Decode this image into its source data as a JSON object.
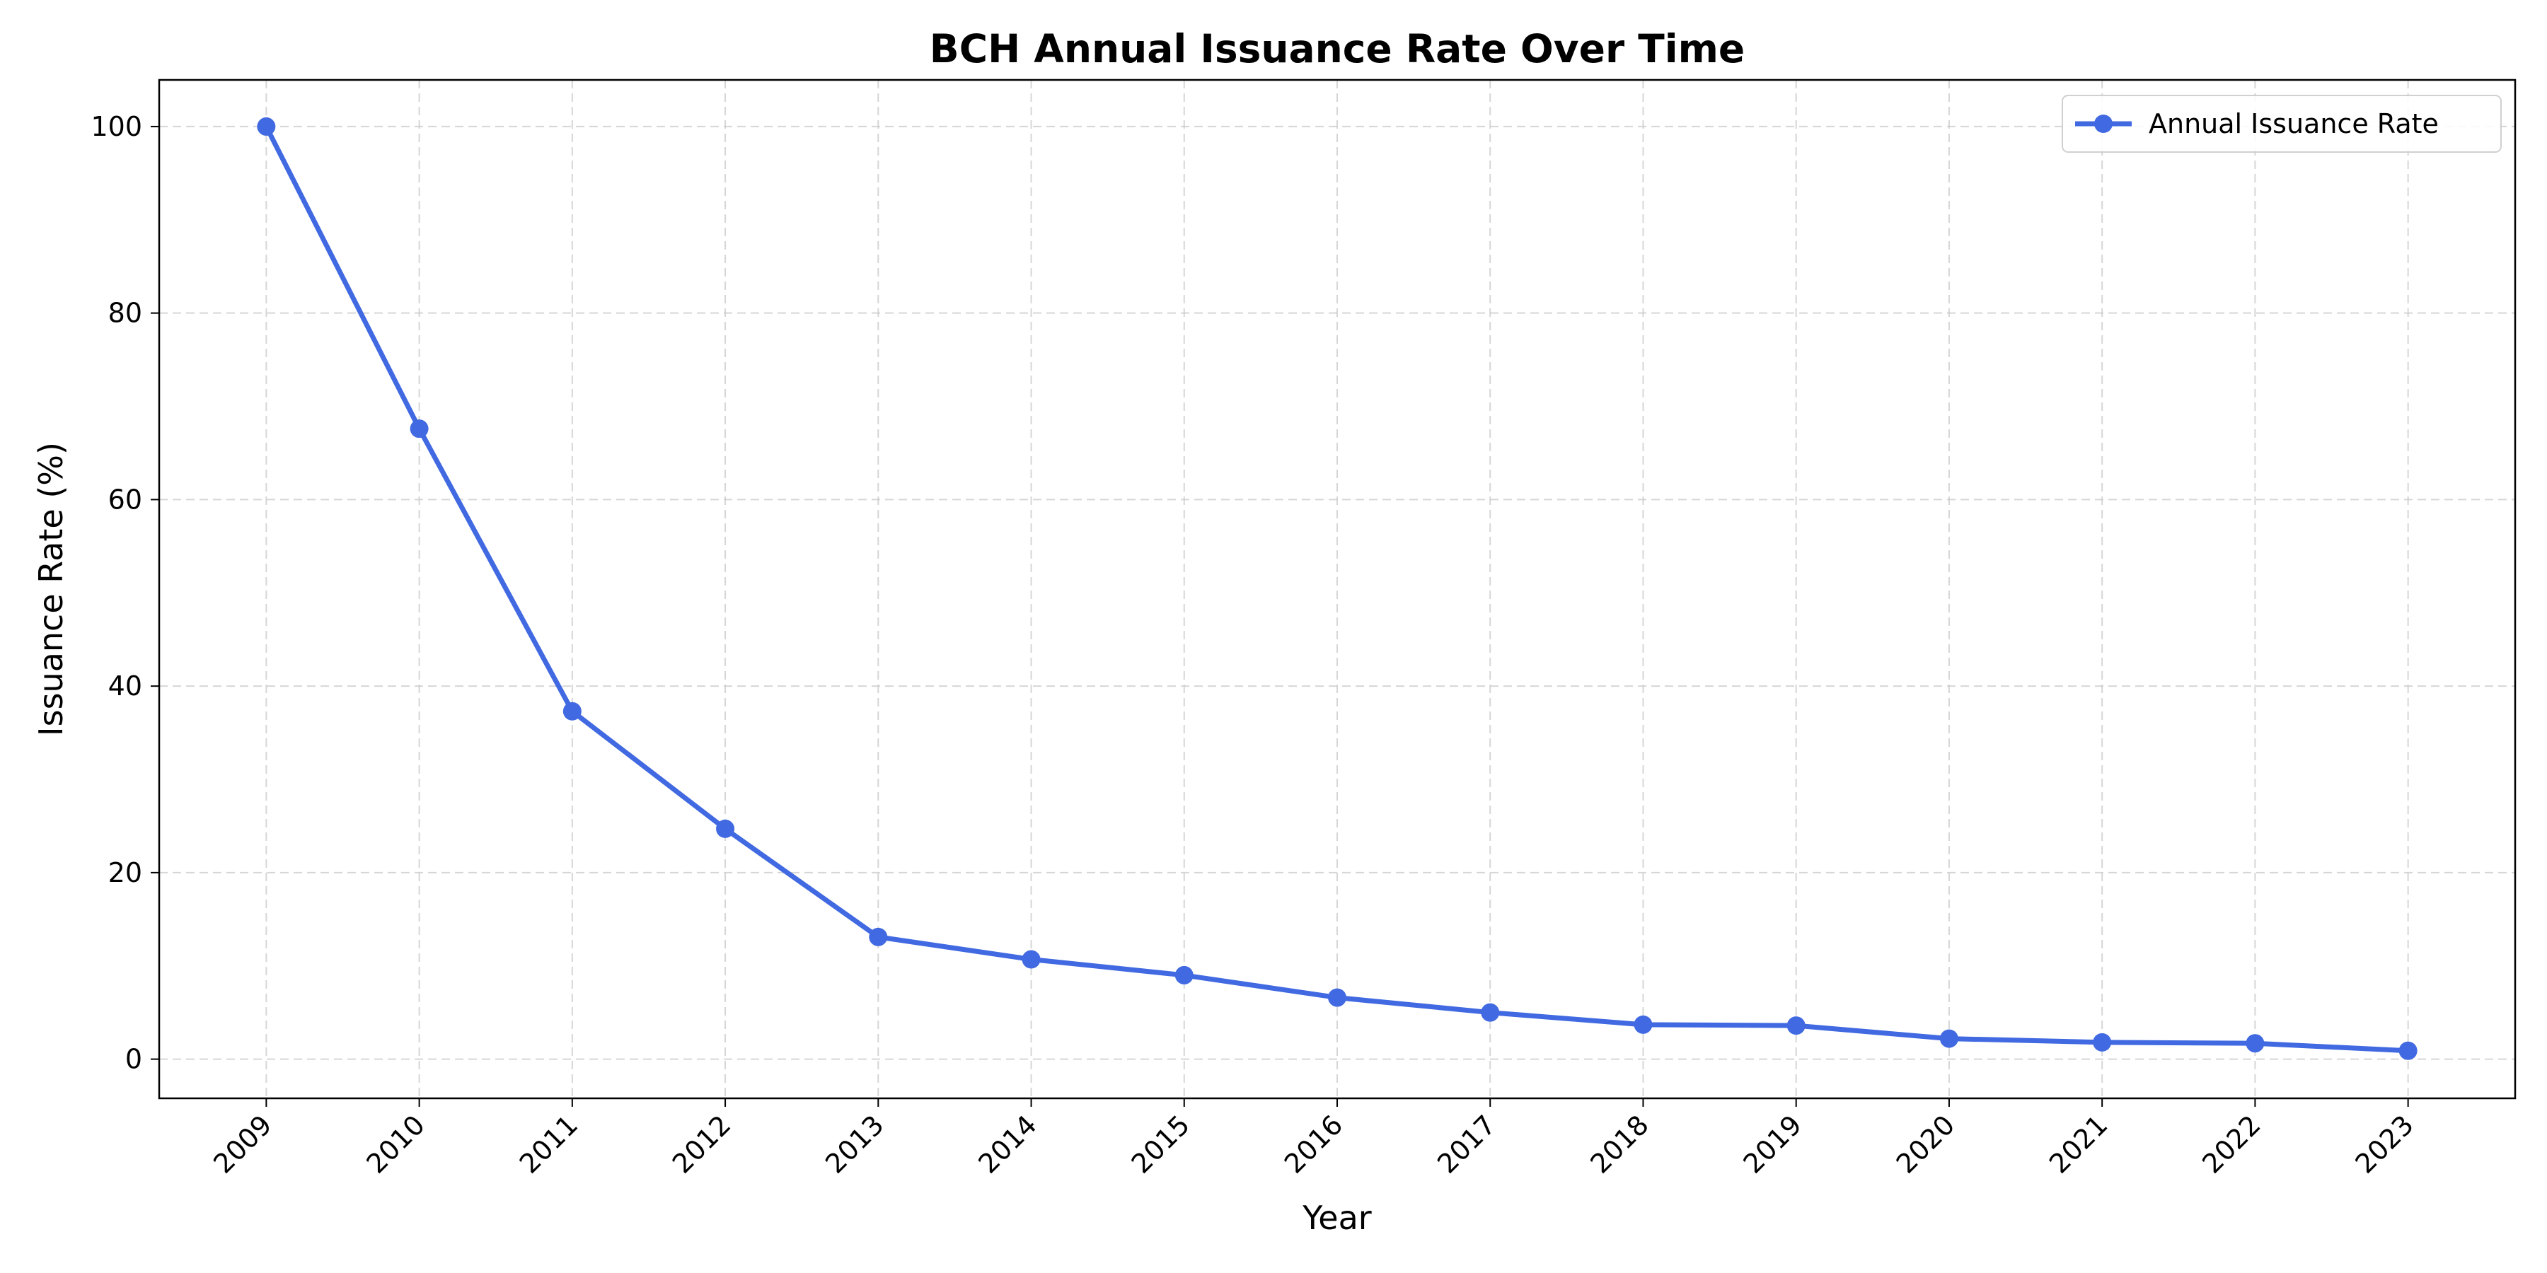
{
  "chart_data": {
    "type": "line",
    "title": "BCH Annual Issuance Rate Over Time",
    "xlabel": "Year",
    "ylabel": "Issuance Rate (%)",
    "categories": [
      "2009",
      "2010",
      "2011",
      "2012",
      "2013",
      "2014",
      "2015",
      "2016",
      "2017",
      "2018",
      "2019",
      "2020",
      "2021",
      "2022",
      "2023"
    ],
    "series": [
      {
        "name": "Annual Issuance Rate",
        "color": "#4169e1",
        "marker": "circle",
        "values": [
          100,
          67.6,
          37.3,
          24.7,
          13.1,
          10.7,
          9.0,
          6.6,
          5.0,
          3.7,
          3.6,
          2.2,
          1.8,
          1.7,
          0.9
        ]
      }
    ],
    "yticks": [
      0,
      20,
      40,
      60,
      80,
      100
    ],
    "ylim": [
      -4.2,
      105
    ],
    "grid": true,
    "legend_position": "top-right",
    "xtick_rotation_deg": 45
  }
}
